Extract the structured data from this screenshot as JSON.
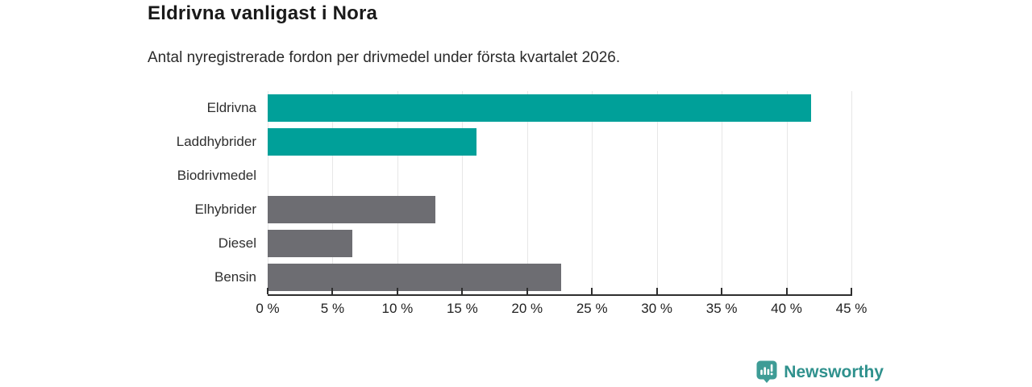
{
  "chart_data": {
    "type": "bar",
    "orientation": "horizontal",
    "title": "Eldrivna vanligast i Nora",
    "subtitle": "Antal nyregistrerade fordon per drivmedel under första kvartalet 2026.",
    "categories": [
      "Eldrivna",
      "Laddhybrider",
      "Biodrivmedel",
      "Elhybrider",
      "Diesel",
      "Bensin"
    ],
    "values": [
      41.9,
      16.1,
      0,
      12.9,
      6.5,
      22.6
    ],
    "unit": "%",
    "xlim": [
      0,
      45
    ],
    "xticks": [
      0,
      5,
      10,
      15,
      20,
      25,
      30,
      35,
      40,
      45
    ],
    "xtick_labels": [
      "0 %",
      "5 %",
      "10 %",
      "15 %",
      "20 %",
      "25 %",
      "30 %",
      "35 %",
      "40 %",
      "45 %"
    ],
    "bar_colors": [
      "#00A099",
      "#00A099",
      "#00A099",
      "#6D6D72",
      "#6D6D72",
      "#6D6D72"
    ],
    "grid": true,
    "legend": false
  },
  "colors": {
    "highlight_teal": "#00A099",
    "neutral_gray": "#6D6D72",
    "gridline": "#E7E7E7",
    "axis": "#2E2E2E",
    "logo_icon": "#3E9C96",
    "logo_text": "#2F918D"
  },
  "footer": {
    "brand": "Newsworthy"
  }
}
